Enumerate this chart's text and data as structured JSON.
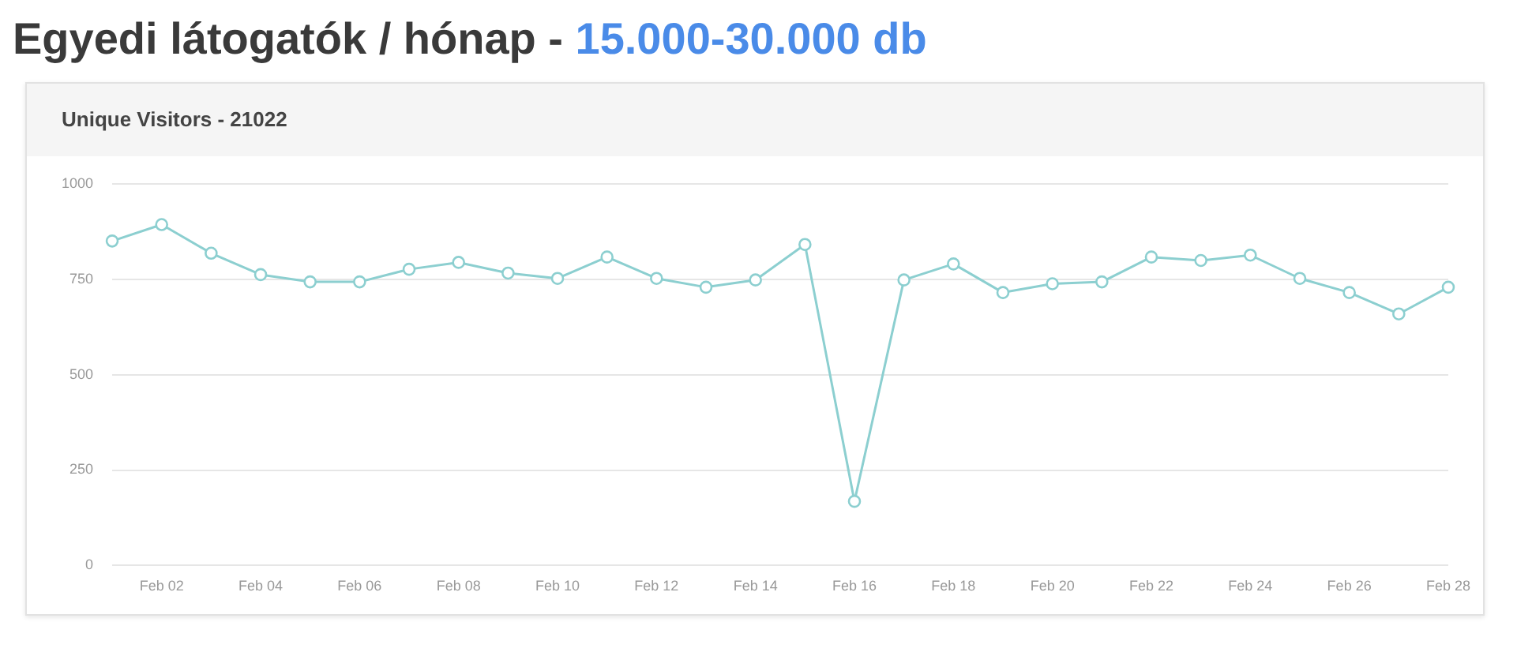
{
  "chart_data": {
    "type": "line",
    "title": "Egyedi látogatók / hónap - 15.000-30.000 db",
    "subtitle": "Unique Visitors - 21022",
    "categories": [
      null,
      "Feb 02",
      null,
      "Feb 04",
      null,
      "Feb 06",
      null,
      "Feb 08",
      null,
      "Feb 10",
      null,
      "Feb 12",
      null,
      "Feb 14",
      null,
      "Feb 16",
      null,
      "Feb 18",
      null,
      "Feb 20",
      null,
      "Feb 22",
      null,
      "Feb 24",
      null,
      "Feb 26",
      null,
      "Feb 28"
    ],
    "series": [
      {
        "color": "#8ccfd0",
        "values": [
          850,
          893,
          818,
          762,
          743,
          743,
          776,
          794,
          766,
          752,
          808,
          752,
          729,
          748,
          841,
          168,
          748,
          790,
          715,
          738,
          743,
          808,
          799,
          813,
          752,
          715,
          659,
          729
        ]
      }
    ],
    "ylim": [
      0,
      1000
    ],
    "yticks": [
      0,
      250,
      500,
      750,
      1000
    ],
    "grid": "y",
    "legend": false,
    "marker": "circle",
    "line_style": "solid"
  }
}
